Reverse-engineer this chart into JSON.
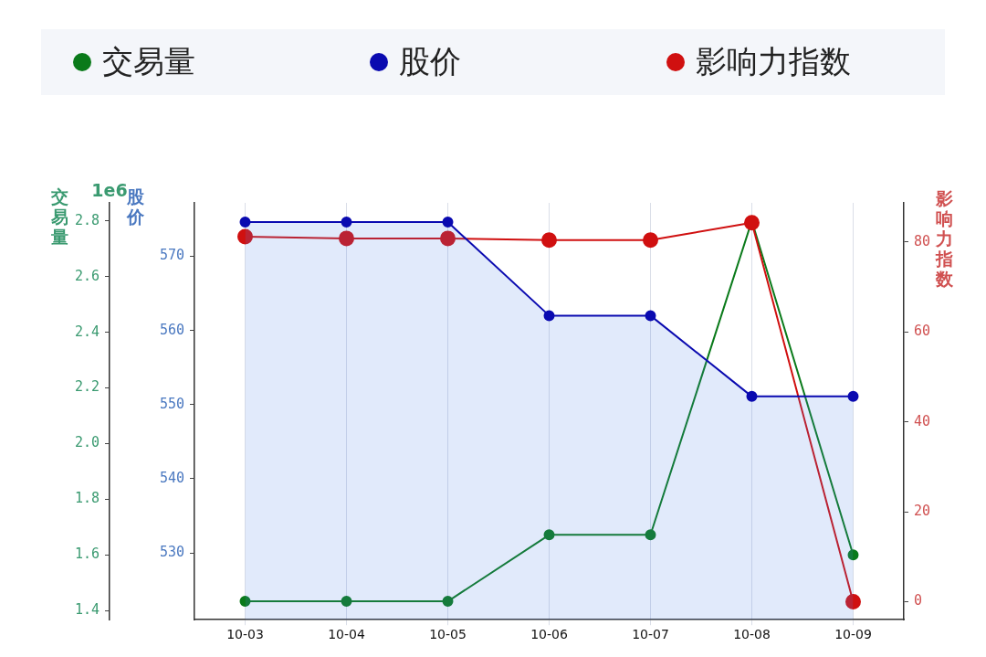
{
  "chart_data": {
    "type": "line",
    "categories": [
      "10-03",
      "10-04",
      "10-05",
      "10-06",
      "10-07",
      "10-08",
      "10-09"
    ],
    "series": [
      {
        "name": "交易量",
        "color": "#0a7a1a",
        "axis": "y",
        "values": [
          1.433,
          1.433,
          1.433,
          1.672,
          1.672,
          2.8,
          1.6
        ]
      },
      {
        "name": "股价",
        "color": "#0a0ab0",
        "axis": "y3",
        "type": "area",
        "values": [
          574.6,
          574.6,
          574.6,
          562,
          562,
          551.1,
          551.1
        ]
      },
      {
        "name": "影响力指数",
        "color": "#d01010",
        "axis": "y2",
        "values": [
          81.2,
          80.8,
          80.8,
          80.4,
          80.4,
          84.3,
          0
        ]
      }
    ],
    "ylabel": "交易量",
    "y3label": "股价",
    "y2label": "影响力指数",
    "ylim": [
      1.367,
      2.865
    ],
    "yticks": [
      1.4,
      1.6,
      1.8,
      {
        "value": 2,
        "label": "2.0"
      },
      2.2,
      2.4,
      2.6,
      2.8
    ],
    "y3lim": [
      521,
      577.2
    ],
    "y3ticks": [
      530,
      540,
      550,
      560,
      570
    ],
    "y2lim": [
      -4,
      88.7
    ],
    "y2ticks": [
      0,
      20,
      40,
      60,
      80
    ],
    "annotations": [
      "1e6"
    ],
    "grid": "x",
    "legend": "top",
    "marker": "circle",
    "line_style": "solid"
  }
}
